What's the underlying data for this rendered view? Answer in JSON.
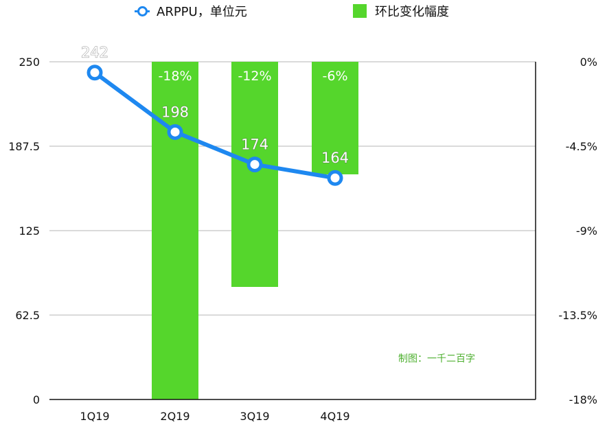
{
  "chart_data": {
    "type": "bar",
    "categories": [
      "1Q19",
      "2Q19",
      "3Q19",
      "4Q19"
    ],
    "series": [
      {
        "name": "ARPPU，单位元",
        "type": "line",
        "axis": "left",
        "values": [
          242,
          198,
          174,
          164
        ],
        "labels": [
          "242",
          "198",
          "174",
          "164"
        ],
        "color": "#1e88f0"
      },
      {
        "name": "环比变化幅度",
        "type": "bar",
        "axis": "right",
        "values": [
          null,
          -18,
          -12,
          -6
        ],
        "labels": [
          "",
          "-18%",
          "-12%",
          "-6%"
        ],
        "color": "#55d62c"
      }
    ],
    "y_left": {
      "range": [
        0,
        250
      ],
      "ticks": [
        "0",
        "62.5",
        "125",
        "187.5",
        "250"
      ]
    },
    "y_right": {
      "range": [
        -18,
        0
      ],
      "ticks": [
        "0%",
        "-4.5%",
        "-9%",
        "-13.5%",
        "-18%"
      ]
    },
    "grid": true,
    "legend_position": "top"
  },
  "watermark": "制图：一千二百字",
  "colors": {
    "line": "#1e88f0",
    "bar": "#55d62c",
    "watermark": "#4caf2e",
    "grid": "#b5b5b5"
  }
}
